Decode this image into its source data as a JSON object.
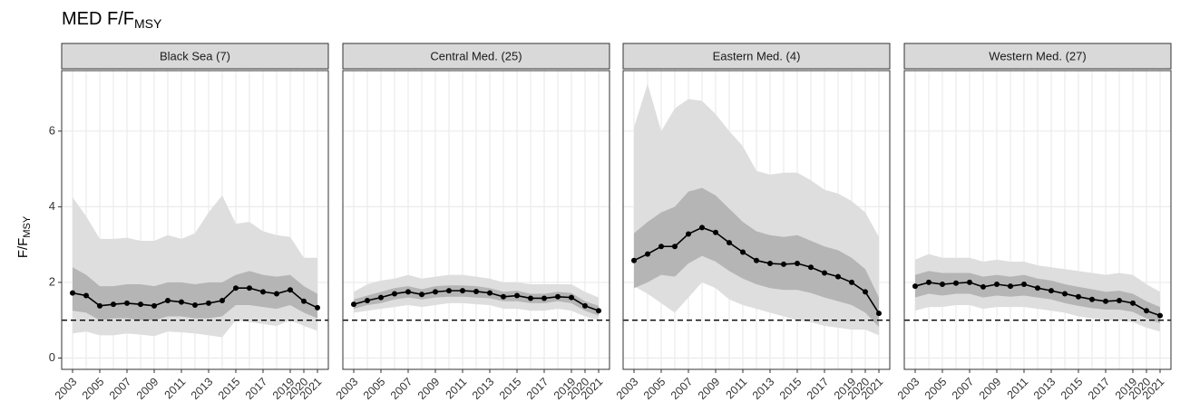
{
  "title": "MED F/F",
  "title_subscript": "MSY",
  "y_label": "F/F",
  "y_label_subscript": "MSY",
  "chart_data": [
    {
      "type": "line",
      "title": "Black Sea (7)",
      "x": [
        2003,
        2004,
        2005,
        2006,
        2007,
        2008,
        2009,
        2010,
        2011,
        2012,
        2013,
        2014,
        2015,
        2016,
        2017,
        2018,
        2019,
        2020,
        2021
      ],
      "values": [
        1.72,
        1.65,
        1.38,
        1.42,
        1.45,
        1.42,
        1.38,
        1.52,
        1.48,
        1.4,
        1.45,
        1.52,
        1.85,
        1.85,
        1.75,
        1.7,
        1.8,
        1.5,
        1.33
      ],
      "band_outer": {
        "upper": [
          4.25,
          3.75,
          3.15,
          3.15,
          3.18,
          3.1,
          3.1,
          3.25,
          3.15,
          3.3,
          3.85,
          4.3,
          3.55,
          3.6,
          3.35,
          3.25,
          3.2,
          2.65,
          2.65
        ],
        "lower": [
          0.65,
          0.7,
          0.6,
          0.6,
          0.65,
          0.62,
          0.58,
          0.7,
          0.68,
          0.65,
          0.6,
          0.55,
          1.0,
          0.95,
          0.9,
          0.85,
          1.0,
          0.85,
          0.72
        ]
      },
      "band_inner": {
        "upper": [
          2.4,
          2.2,
          1.9,
          1.9,
          1.95,
          1.95,
          1.9,
          2.0,
          2.0,
          1.95,
          2.0,
          2.0,
          2.2,
          2.3,
          2.2,
          2.15,
          2.2,
          1.9,
          1.7
        ],
        "lower": [
          1.25,
          1.2,
          1.0,
          1.05,
          1.05,
          1.0,
          1.0,
          1.1,
          1.1,
          1.05,
          1.05,
          1.1,
          1.4,
          1.4,
          1.35,
          1.3,
          1.4,
          1.2,
          1.05
        ]
      },
      "reference_line": 1,
      "color": "#000000",
      "band_outer_color": "#dedede",
      "band_inner_color": "#b5b5b5",
      "xlim": [
        2002.2,
        2021.8
      ],
      "xticks": [
        2003,
        2005,
        2007,
        2009,
        2011,
        2013,
        2015,
        2017,
        2019,
        2020,
        2021
      ],
      "ylim": [
        -0.3,
        7.6
      ],
      "yticks": [
        0,
        2,
        4,
        6
      ],
      "grid": true
    },
    {
      "type": "line",
      "title": "Central Med. (25)",
      "x": [
        2003,
        2004,
        2005,
        2006,
        2007,
        2008,
        2009,
        2010,
        2011,
        2012,
        2013,
        2014,
        2015,
        2016,
        2017,
        2018,
        2019,
        2020,
        2021
      ],
      "values": [
        1.42,
        1.52,
        1.6,
        1.7,
        1.75,
        1.68,
        1.75,
        1.78,
        1.78,
        1.76,
        1.72,
        1.62,
        1.65,
        1.58,
        1.58,
        1.62,
        1.6,
        1.38,
        1.25
      ],
      "band_outer": {
        "upper": [
          1.75,
          1.95,
          2.05,
          2.1,
          2.2,
          2.1,
          2.15,
          2.2,
          2.2,
          2.15,
          2.1,
          2.0,
          2.0,
          1.95,
          1.95,
          1.95,
          1.95,
          1.75,
          1.6
        ],
        "lower": [
          1.2,
          1.25,
          1.3,
          1.35,
          1.4,
          1.35,
          1.4,
          1.45,
          1.45,
          1.42,
          1.4,
          1.3,
          1.3,
          1.25,
          1.25,
          1.3,
          1.25,
          1.1,
          1.0
        ]
      },
      "band_inner": {
        "upper": [
          1.55,
          1.65,
          1.75,
          1.85,
          1.9,
          1.82,
          1.9,
          1.92,
          1.92,
          1.9,
          1.85,
          1.75,
          1.78,
          1.7,
          1.7,
          1.75,
          1.72,
          1.5,
          1.38
        ],
        "lower": [
          1.3,
          1.4,
          1.45,
          1.55,
          1.6,
          1.55,
          1.6,
          1.62,
          1.62,
          1.6,
          1.58,
          1.5,
          1.5,
          1.45,
          1.45,
          1.5,
          1.45,
          1.25,
          1.12
        ]
      },
      "reference_line": 1,
      "color": "#000000",
      "band_outer_color": "#dedede",
      "band_inner_color": "#b5b5b5",
      "xlim": [
        2002.2,
        2021.8
      ],
      "xticks": [
        2003,
        2005,
        2007,
        2009,
        2011,
        2013,
        2015,
        2017,
        2019,
        2020,
        2021
      ],
      "ylim": [
        -0.3,
        7.6
      ],
      "yticks": [
        0,
        2,
        4,
        6
      ],
      "grid": true
    },
    {
      "type": "line",
      "title": "Eastern Med. (4)",
      "x": [
        2003,
        2004,
        2005,
        2006,
        2007,
        2008,
        2009,
        2010,
        2011,
        2012,
        2013,
        2014,
        2015,
        2016,
        2017,
        2018,
        2019,
        2020,
        2021
      ],
      "values": [
        2.58,
        2.75,
        2.95,
        2.95,
        3.28,
        3.45,
        3.32,
        3.05,
        2.8,
        2.58,
        2.5,
        2.48,
        2.5,
        2.4,
        2.25,
        2.15,
        2.0,
        1.75,
        1.18
      ],
      "band_outer": {
        "upper": [
          6.1,
          7.25,
          6.0,
          6.6,
          6.85,
          6.8,
          6.45,
          6.0,
          5.6,
          4.95,
          4.85,
          4.9,
          4.9,
          4.7,
          4.45,
          4.35,
          4.15,
          3.85,
          3.2
        ],
        "lower": [
          1.9,
          1.7,
          1.45,
          1.2,
          1.6,
          2.0,
          1.85,
          1.55,
          1.4,
          1.3,
          1.2,
          1.1,
          1.0,
          0.95,
          0.85,
          0.8,
          0.75,
          0.75,
          0.6
        ]
      },
      "band_inner": {
        "upper": [
          3.3,
          3.6,
          3.85,
          4.0,
          4.4,
          4.5,
          4.3,
          3.95,
          3.6,
          3.35,
          3.25,
          3.2,
          3.25,
          3.1,
          2.95,
          2.85,
          2.65,
          2.35,
          1.6
        ],
        "lower": [
          1.85,
          2.0,
          2.2,
          2.15,
          2.5,
          2.7,
          2.55,
          2.3,
          2.1,
          1.95,
          1.85,
          1.8,
          1.8,
          1.72,
          1.6,
          1.5,
          1.4,
          1.2,
          0.82
        ]
      },
      "reference_line": 1,
      "color": "#000000",
      "band_outer_color": "#dedede",
      "band_inner_color": "#b5b5b5",
      "xlim": [
        2002.2,
        2021.8
      ],
      "xticks": [
        2003,
        2005,
        2007,
        2009,
        2011,
        2013,
        2015,
        2017,
        2019,
        2020,
        2021
      ],
      "ylim": [
        -0.3,
        7.6
      ],
      "yticks": [
        0,
        2,
        4,
        6
      ],
      "grid": true
    },
    {
      "type": "line",
      "title": "Western Med. (27)",
      "x": [
        2003,
        2004,
        2005,
        2006,
        2007,
        2008,
        2009,
        2010,
        2011,
        2012,
        2013,
        2014,
        2015,
        2016,
        2017,
        2018,
        2019,
        2020,
        2021
      ],
      "values": [
        1.9,
        2.0,
        1.95,
        1.98,
        2.0,
        1.88,
        1.95,
        1.9,
        1.95,
        1.85,
        1.78,
        1.7,
        1.62,
        1.55,
        1.5,
        1.52,
        1.45,
        1.25,
        1.12
      ],
      "band_outer": {
        "upper": [
          2.6,
          2.75,
          2.65,
          2.65,
          2.65,
          2.55,
          2.6,
          2.55,
          2.55,
          2.45,
          2.4,
          2.35,
          2.3,
          2.25,
          2.2,
          2.25,
          2.2,
          1.95,
          1.75
        ],
        "lower": [
          1.25,
          1.35,
          1.35,
          1.4,
          1.4,
          1.3,
          1.35,
          1.35,
          1.35,
          1.3,
          1.25,
          1.2,
          1.1,
          1.05,
          1.0,
          1.0,
          0.95,
          0.8,
          0.7
        ]
      },
      "band_inner": {
        "upper": [
          2.2,
          2.3,
          2.25,
          2.25,
          2.25,
          2.15,
          2.2,
          2.15,
          2.2,
          2.1,
          2.05,
          1.95,
          1.88,
          1.82,
          1.75,
          1.78,
          1.7,
          1.5,
          1.35
        ],
        "lower": [
          1.6,
          1.7,
          1.65,
          1.7,
          1.7,
          1.6,
          1.65,
          1.62,
          1.65,
          1.6,
          1.55,
          1.45,
          1.38,
          1.32,
          1.28,
          1.28,
          1.22,
          1.05,
          0.92
        ]
      },
      "reference_line": 1,
      "color": "#000000",
      "band_outer_color": "#dedede",
      "band_inner_color": "#b5b5b5",
      "xlim": [
        2002.2,
        2021.8
      ],
      "xticks": [
        2003,
        2005,
        2007,
        2009,
        2011,
        2013,
        2015,
        2017,
        2019,
        2020,
        2021
      ],
      "ylim": [
        -0.3,
        7.6
      ],
      "yticks": [
        0,
        2,
        4,
        6
      ],
      "grid": true
    }
  ]
}
